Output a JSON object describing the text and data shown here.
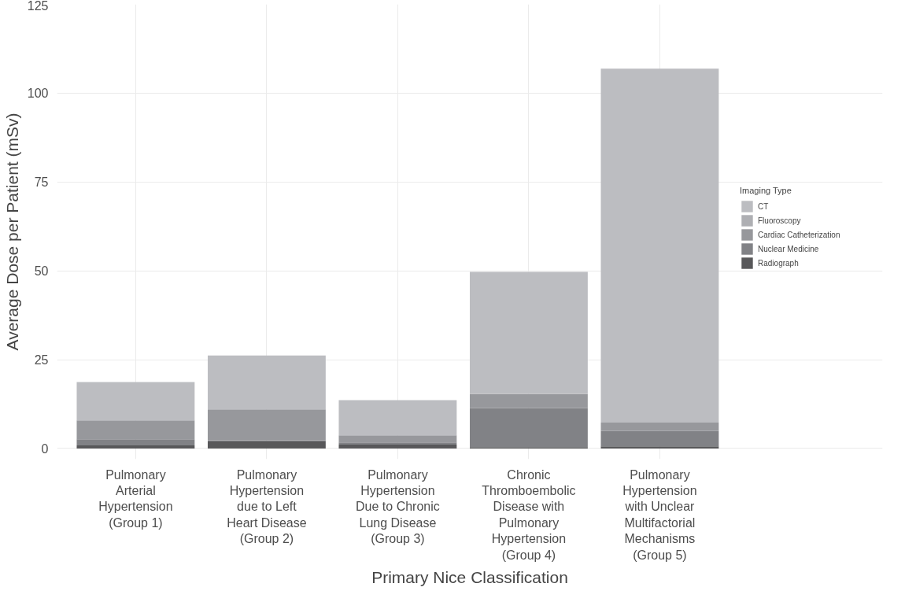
{
  "chart_data": {
    "type": "bar",
    "stacked": true,
    "xlabel": "Primary Nice Classification",
    "ylabel": "Average Dose per Patient (mSv)",
    "legend_title": "Imaging Type",
    "categories": [
      "Pulmonary\nArterial\nHypertension\n(Group 1)",
      "Pulmonary\nHypertension\ndue to Left\nHeart Disease\n(Group 2)",
      "Pulmonary\nHypertension\nDue to Chronic\nLung Disease\n(Group 3)",
      "Chronic\nThromboembolic\nDisease with\nPulmonary\nHypertension\n(Group 4)",
      "Pulmonary\nHypertension\nwith Unclear\nMultifactorial\nMechanisms\n(Group 5)"
    ],
    "series": [
      {
        "name": "Radiograph",
        "color": "#58585a",
        "values": [
          0.9,
          2.0,
          1.1,
          0.4,
          0.6
        ]
      },
      {
        "name": "Nuclear Medicine",
        "color": "#818286",
        "values": [
          1.7,
          0.3,
          0.6,
          11.0,
          4.3
        ]
      },
      {
        "name": "Cardiac Catheterization",
        "color": "#97989c",
        "values": [
          5.3,
          8.7,
          2.0,
          3.9,
          2.4
        ]
      },
      {
        "name": "Fluoroscopy",
        "color": "#aeafb3",
        "values": [
          null,
          null,
          null,
          null,
          null
        ]
      },
      {
        "name": "CT",
        "color": "#bcbdc1",
        "values": [
          10.8,
          15.2,
          9.9,
          34.4,
          99.6
        ]
      }
    ],
    "ylim": [
      -3,
      125
    ],
    "yticks": [
      0,
      25,
      50,
      75,
      100,
      125
    ],
    "grid": true,
    "legend": "right"
  }
}
